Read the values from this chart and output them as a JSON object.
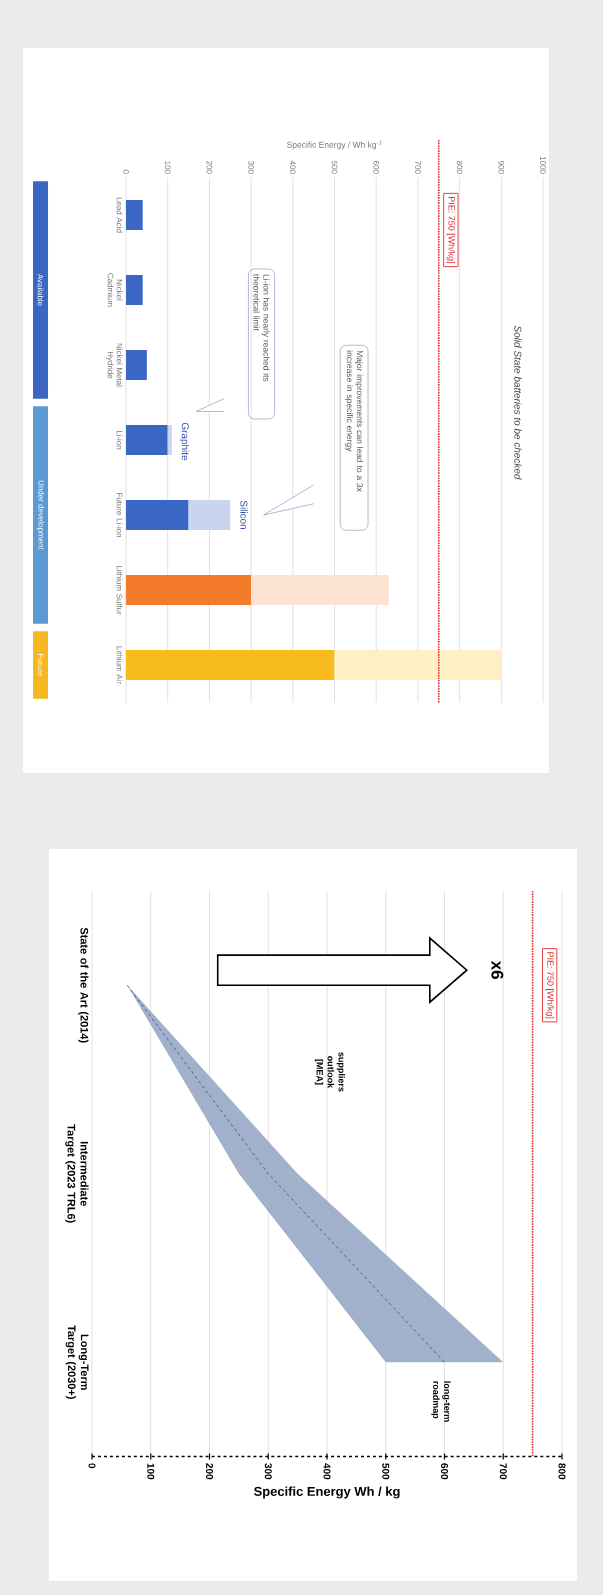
{
  "chart_data": [
    {
      "type": "bar",
      "orientation": "horizontal",
      "title": "Solid State batteries to be checked",
      "xlabel": "Specific Energy / Wh kg$^{-1}$",
      "categories": [
        "Lead Acid",
        "Nickel Cadmium",
        "Nickel Metal Hydride",
        "Li-ion",
        "Future Li-ion",
        "Lithium Sulfur",
        "Lithium Air"
      ],
      "stacked": true,
      "series": [
        {
          "colors": [
            "#3a66c6",
            "#3a66c6",
            "#3a66c6",
            "#3a66c6",
            "#3a66c6",
            "#f47b2a",
            "#f7bb1e"
          ],
          "values": [
            40,
            40,
            50,
            100,
            150,
            300,
            500
          ]
        },
        {
          "colors": [
            "#c9d5ee",
            "#c9d5ee",
            "#c9d5ee",
            "#c9d5ee",
            "#c9d5ee",
            "#fce3d2",
            "#fdf0c4"
          ],
          "values": [
            null,
            null,
            null,
            10,
            100,
            330,
            400
          ]
        }
      ],
      "xlim": [
        0,
        1000
      ],
      "xticks": [
        0,
        100,
        200,
        300,
        400,
        500,
        600,
        700,
        800,
        900,
        1000
      ],
      "grid": "x",
      "ref_lines": [
        {
          "axis": "x",
          "value": 750,
          "label": "PIE: 750 [Wh/kg]",
          "color": "#e03030",
          "line_style": "dotted"
        }
      ],
      "annotations": [
        "Li-ion has nearly reached its theoretical limit",
        "Graphite",
        "Major improvements can lead to a 3x increase in specific energy",
        "Silicon",
        "Available",
        "Under development",
        "Future"
      ]
    },
    {
      "type": "line",
      "orientation": "horizontal",
      "xlabel": "Specific Energy Wh / kg",
      "categories": [
        "State of the Art (2014)",
        "Intermediate Target (2023 TRL6)",
        "Long-Term Target (2030+)"
      ],
      "series": [
        {
          "color": "#2e4f8c",
          "line_style": "dashed",
          "values": [
            60,
            300,
            600
          ],
          "lower": [
            60,
            250,
            500
          ],
          "upper": [
            60,
            350,
            700
          ]
        }
      ],
      "xlim": [
        0,
        800
      ],
      "xticks": [
        0,
        100,
        200,
        300,
        400,
        500,
        600,
        700,
        800
      ],
      "grid": "x",
      "marker": "none",
      "ref_lines": [
        {
          "axis": "x",
          "value": 750,
          "label": "PIE: 750 [Wh/kg]",
          "color": "#e03030",
          "line_style": "dotted"
        }
      ],
      "annotations": [
        "x6",
        "suppliers outlook [MEA]",
        "long-term roadmap"
      ]
    }
  ]
}
